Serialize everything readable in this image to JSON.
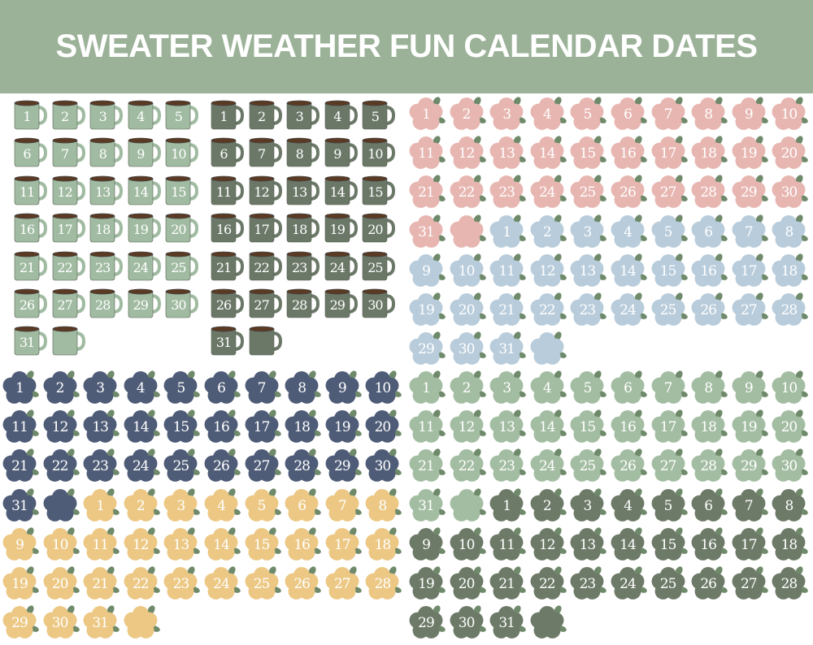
{
  "title": "SWEATER WEATHER FUN CALENDAR DATES",
  "days": [
    "1",
    "2",
    "3",
    "4",
    "5",
    "6",
    "7",
    "8",
    "9",
    "10",
    "11",
    "12",
    "13",
    "14",
    "15",
    "16",
    "17",
    "18",
    "19",
    "20",
    "21",
    "22",
    "23",
    "24",
    "25",
    "26",
    "27",
    "28",
    "29",
    "30",
    "31"
  ],
  "colors": {
    "header": "#9bb298",
    "coffee": "#5b3a24",
    "leaf": "#6f8a6a"
  },
  "sets": [
    {
      "name": "mug-light-green",
      "shape": "mug",
      "color": "#a0bba1",
      "includes_blank": true
    },
    {
      "name": "mug-dark-green",
      "shape": "mug",
      "color": "#6b7868",
      "includes_blank": true
    },
    {
      "name": "flower-pink",
      "shape": "flower",
      "color": "#e7b6b1",
      "includes_blank": true
    },
    {
      "name": "flower-blue",
      "shape": "flower",
      "color": "#b8ccdb",
      "includes_blank": true
    },
    {
      "name": "flower-navy",
      "shape": "flower",
      "color": "#4f5c77",
      "includes_blank": true
    },
    {
      "name": "flower-yellow",
      "shape": "flower",
      "color": "#ecc884",
      "includes_blank": true
    },
    {
      "name": "flower-sage",
      "shape": "flower",
      "color": "#a3bda2",
      "includes_blank": true
    },
    {
      "name": "flower-dark-sage",
      "shape": "flower",
      "color": "#6d7a68",
      "includes_blank": true
    }
  ]
}
